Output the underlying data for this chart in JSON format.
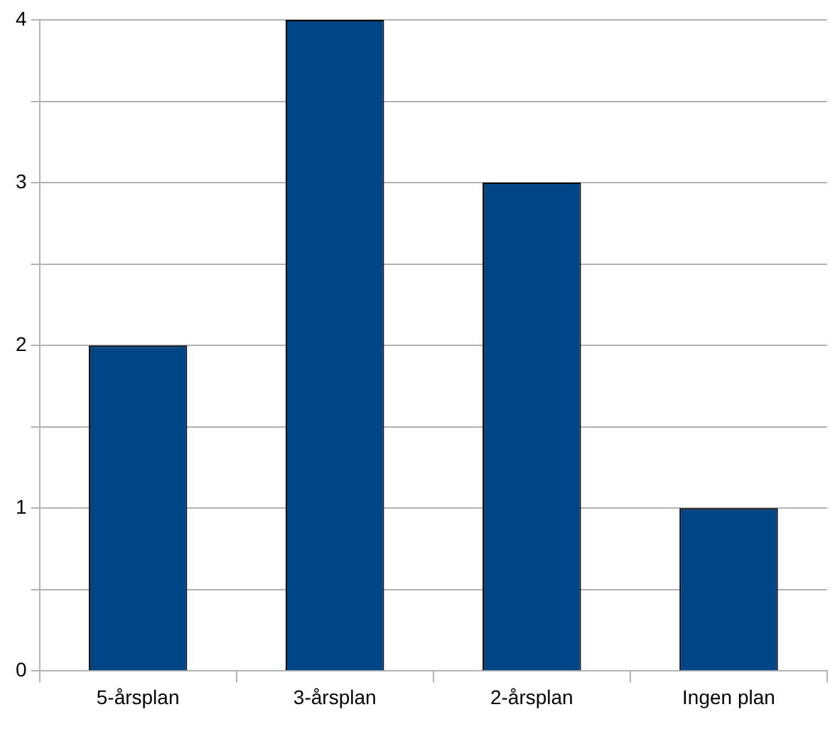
{
  "chart_data": {
    "type": "bar",
    "categories": [
      "5-årsplan",
      "3-årsplan",
      "2-årsplan",
      "Ingen plan"
    ],
    "values": [
      2,
      4,
      3,
      1
    ],
    "color": "#004586",
    "ylim": [
      0,
      4
    ],
    "yticks": [
      0,
      {
        "value": 0.5,
        "label": null
      },
      1,
      {
        "value": 1.5,
        "label": null
      },
      2,
      {
        "value": 2.5,
        "label": null
      },
      3,
      {
        "value": 3.5,
        "label": null
      },
      4
    ],
    "grid": "y",
    "legend": false
  }
}
